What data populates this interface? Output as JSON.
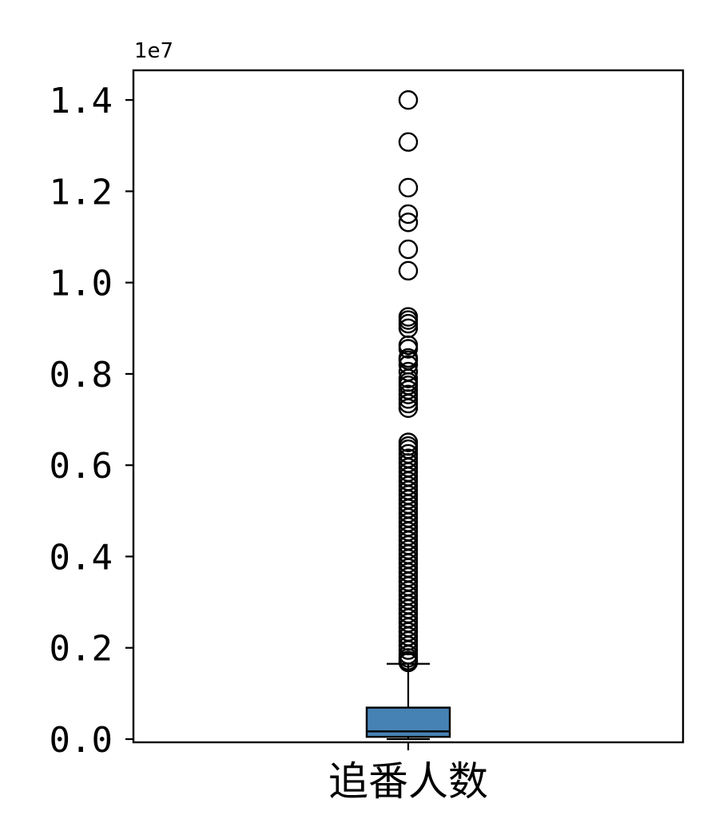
{
  "chart_data": {
    "type": "box",
    "title": "",
    "xlabel": "",
    "ylabel": "",
    "y_offset_label": "1e7",
    "y_scale": 10000000,
    "ylim": [
      -70000,
      14650000
    ],
    "y_ticks": [
      0,
      2000000,
      4000000,
      6000000,
      8000000,
      10000000,
      12000000,
      14000000
    ],
    "y_tick_labels": [
      "0.0",
      "0.2",
      "0.4",
      "0.6",
      "0.8",
      "1.0",
      "1.2",
      "1.4"
    ],
    "categories": [
      "追番人数"
    ],
    "grid": false,
    "box": {
      "whisker_low": 0,
      "q1": 50000,
      "median": 170000,
      "q3": 690000,
      "whisker_high": 1650000
    },
    "outliers": [
      14000000,
      13080000,
      12080000,
      11500000,
      11320000,
      10730000,
      10260000,
      9250000,
      9180000,
      9100000,
      9000000,
      8630000,
      8550000,
      8350000,
      8300000,
      8200000,
      8050000,
      7900000,
      7820000,
      7750000,
      7650000,
      7550000,
      7450000,
      7350000,
      7250000,
      6500000,
      6420000,
      6350000,
      6250000,
      6150000,
      6050000,
      5950000,
      5850000,
      5750000,
      5650000,
      5550000,
      5450000,
      5350000,
      5250000,
      5150000,
      5050000,
      4950000,
      4850000,
      4750000,
      4650000,
      4550000,
      4450000,
      4350000,
      4250000,
      4150000,
      4050000,
      3950000,
      3850000,
      3750000,
      3650000,
      3550000,
      3450000,
      3350000,
      3250000,
      3150000,
      3050000,
      2950000,
      2850000,
      2750000,
      2650000,
      2550000,
      2450000,
      2350000,
      2250000,
      2150000,
      2050000,
      1950000,
      1850000,
      1780000,
      1720000,
      1680000
    ],
    "colors": {
      "box_fill": "#4682b4",
      "outline": "#000000"
    }
  }
}
